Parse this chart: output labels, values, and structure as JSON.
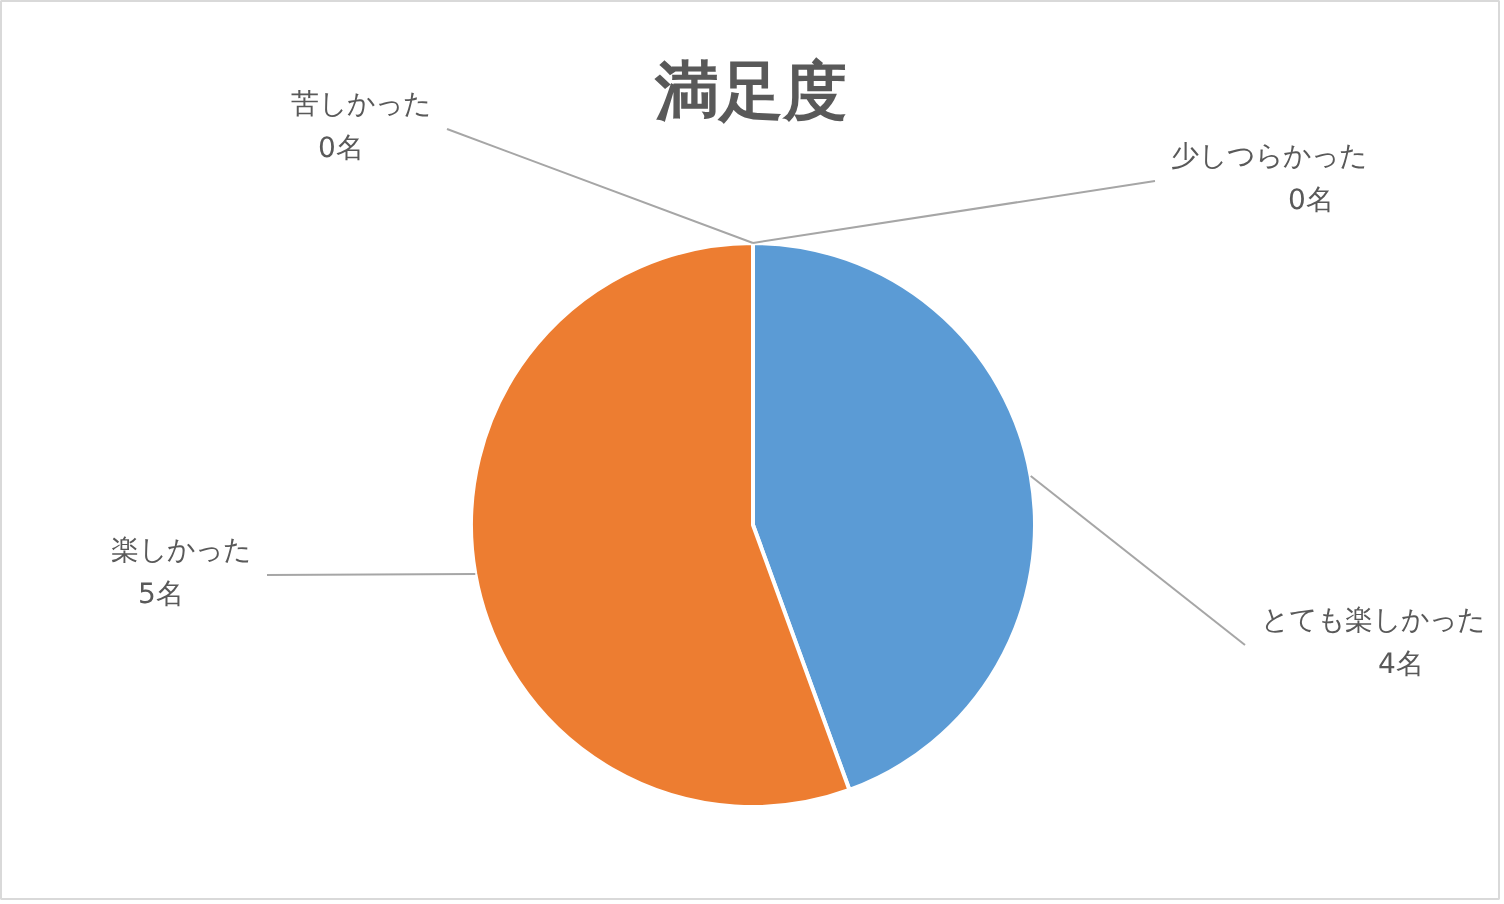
{
  "chart_data": {
    "type": "pie",
    "title": "満足度",
    "categories": [
      "とても楽しかった",
      "楽しかった",
      "少しつらかった",
      "苦しかった"
    ],
    "values": [
      4,
      5,
      0,
      0
    ],
    "colors": [
      "#5b9bd5",
      "#ed7d31",
      "#a5a5a5",
      "#ffc000"
    ],
    "value_labels": [
      "4名",
      "5名",
      "0名",
      "0名"
    ]
  }
}
